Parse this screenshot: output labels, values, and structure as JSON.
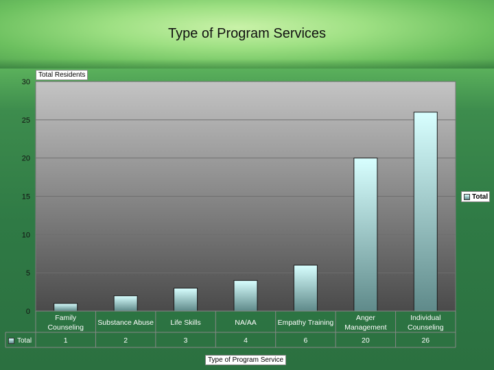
{
  "slide": {
    "title": "Type of Program Services"
  },
  "chart_data": {
    "type": "bar",
    "title": "Type of Program Services",
    "ylabel": "Total Residents",
    "xlabel": "Type of Program Service",
    "ylim": [
      0,
      30
    ],
    "yticks": [
      0,
      5,
      10,
      15,
      20,
      25,
      30
    ],
    "grid": true,
    "legend": "right",
    "categories": [
      [
        "Family",
        "Counseling"
      ],
      [
        "Substance Abuse"
      ],
      [
        "Life Skills"
      ],
      [
        "NA/AA"
      ],
      [
        "Empathy Training"
      ],
      [
        "Anger",
        "Management"
      ],
      [
        "Individual",
        "Counseling"
      ]
    ],
    "series": [
      {
        "name": "Total",
        "values": [
          1,
          2,
          3,
          4,
          6,
          20,
          26
        ]
      }
    ],
    "data_table": true
  },
  "legend": {
    "label": "Total"
  },
  "data_table": {
    "row_label": "Total"
  },
  "colors": {
    "plot_top": "#c4c4c4",
    "plot_bottom": "#4a4a4a",
    "bar_top": "#d8ffff",
    "bar_bottom": "#5f8a8a",
    "grid": "#6f6f6f"
  }
}
